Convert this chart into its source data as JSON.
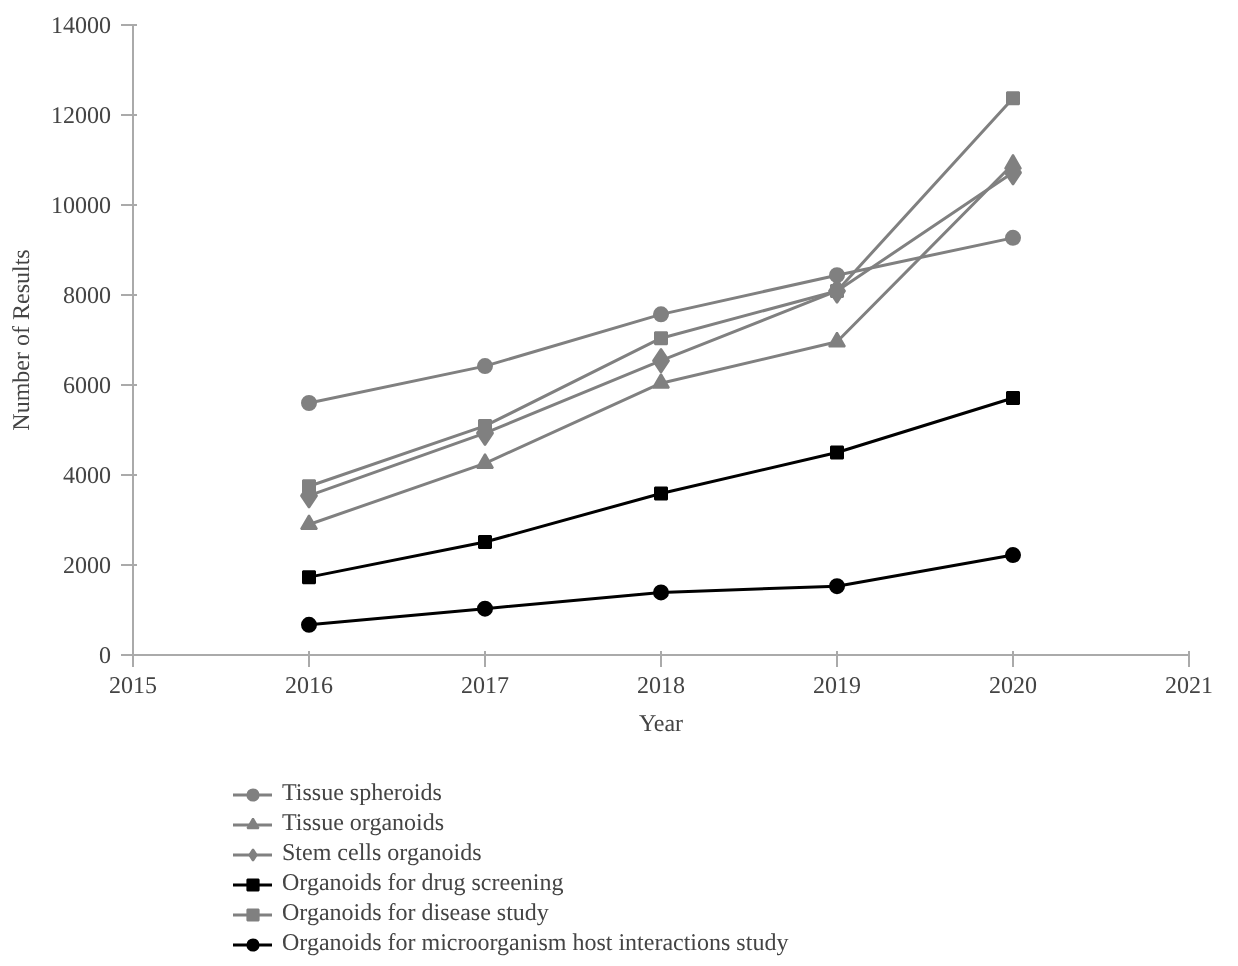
{
  "chart_data": {
    "type": "line",
    "xlabel": "Year",
    "ylabel": "Number of Results",
    "x": [
      2016,
      2017,
      2018,
      2019,
      2020
    ],
    "xlim": [
      2015,
      2021
    ],
    "xticks": [
      2015,
      2016,
      2017,
      2018,
      2019,
      2020,
      2021
    ],
    "ylim": [
      0,
      14000
    ],
    "yticks": [
      0,
      2000,
      4000,
      6000,
      8000,
      10000,
      12000,
      14000
    ],
    "grid": false,
    "legend": "bottom",
    "series": [
      {
        "name": "Tissue spheroids",
        "color": "#808080",
        "marker": "circle",
        "values": [
          5600,
          6420,
          7570,
          8440,
          9270
        ]
      },
      {
        "name": "Tissue organoids",
        "color": "#808080",
        "marker": "triangle",
        "values": [
          2900,
          4260,
          6040,
          6960,
          10910
        ]
      },
      {
        "name": "Stem cells organoids",
        "color": "#808080",
        "marker": "diamond",
        "values": [
          3540,
          4930,
          6540,
          8090,
          10720
        ]
      },
      {
        "name": "Organoids for drug screening",
        "color": "#000000",
        "marker": "square",
        "values": [
          1730,
          2510,
          3590,
          4500,
          5710
        ]
      },
      {
        "name": "Organoids for disease study",
        "color": "#808080",
        "marker": "square",
        "values": [
          3750,
          5090,
          7040,
          8090,
          12370
        ]
      },
      {
        "name": "Organoids for microorganism host interactions study",
        "color": "#000000",
        "marker": "circle",
        "values": [
          670,
          1030,
          1390,
          1530,
          2220
        ]
      }
    ]
  }
}
